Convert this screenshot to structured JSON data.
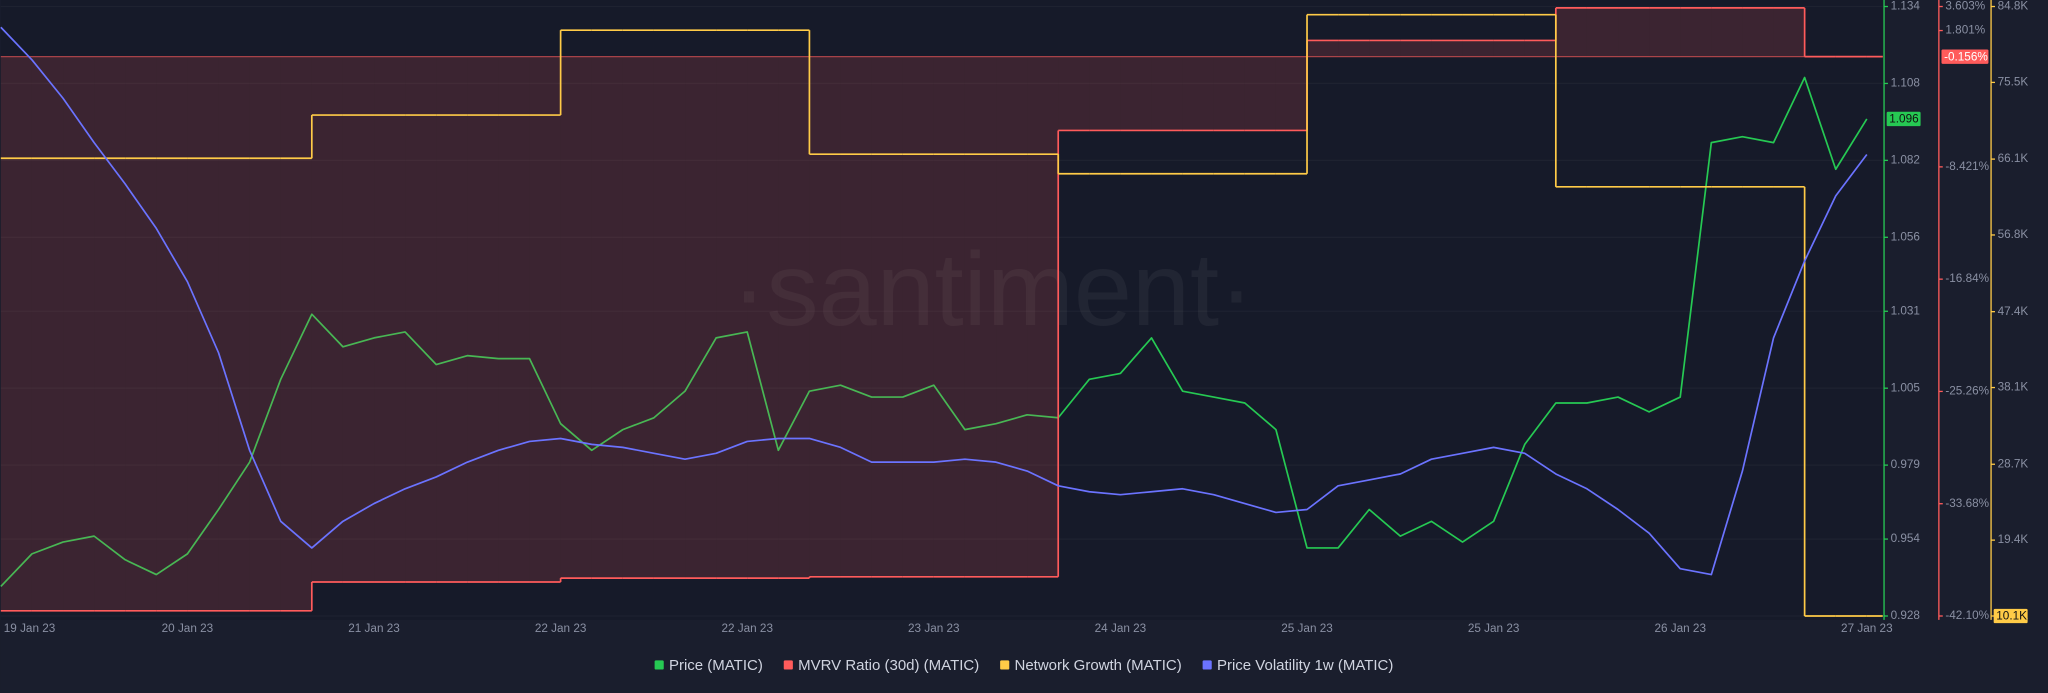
{
  "chart_data": {
    "type": "line",
    "watermark": "·santiment·",
    "categories": [
      "19 Jan 23",
      null,
      null,
      null,
      null,
      null,
      "20 Jan 23",
      null,
      null,
      null,
      null,
      null,
      "21 Jan 23",
      null,
      null,
      null,
      null,
      null,
      "22 Jan 23",
      null,
      null,
      null,
      null,
      null,
      "22 Jan 23",
      null,
      null,
      null,
      null,
      null,
      "23 Jan 23",
      null,
      null,
      null,
      null,
      null,
      "24 Jan 23",
      null,
      null,
      null,
      null,
      null,
      "25 Jan 23",
      null,
      null,
      null,
      null,
      null,
      "25 Jan 23",
      null,
      null,
      null,
      null,
      null,
      "26 Jan 23",
      null,
      null,
      null,
      null,
      null,
      "27 Jan 23"
    ],
    "ylim": [
      0.928,
      1.134
    ],
    "yticks": [
      0.928,
      0.954,
      0.979,
      1.005,
      1.031,
      1.056,
      1.082,
      1.108,
      1.134
    ],
    "y2lim": [
      -42.1,
      3.603
    ],
    "y2ticks": [
      {
        "value": -42.1,
        "label": "-42.10%"
      },
      {
        "value": -33.68,
        "label": "-33.68%"
      },
      {
        "value": -25.26,
        "label": "-25.26%"
      },
      {
        "value": -16.84,
        "label": "-16.84%"
      },
      {
        "value": -8.421,
        "label": "-8.421%"
      },
      {
        "value": 1.801,
        "label": "1.801%"
      },
      {
        "value": 3.603,
        "label": "3.603%"
      }
    ],
    "y3lim": [
      10100,
      84800
    ],
    "y3ticks": [
      {
        "value": 10100,
        "label": "10.1K"
      },
      {
        "value": 19400,
        "label": "19.4K"
      },
      {
        "value": 28700,
        "label": "28.7K"
      },
      {
        "value": 38100,
        "label": "38.1K"
      },
      {
        "value": 47400,
        "label": "47.4K"
      },
      {
        "value": 56800,
        "label": "56.8K"
      },
      {
        "value": 66100,
        "label": "66.1K"
      },
      {
        "value": 75500,
        "label": "75.5K"
      },
      {
        "value": 84800,
        "label": "84.8K"
      }
    ],
    "grid": true,
    "legend": "bottom",
    "series": [
      {
        "name": "Price (MATIC)",
        "color": "#26c953",
        "axis": "y",
        "values": [
          0.938,
          0.949,
          0.953,
          0.955,
          0.947,
          0.942,
          0.949,
          0.964,
          0.98,
          1.008,
          1.03,
          1.019,
          1.022,
          1.024,
          1.013,
          1.016,
          1.015,
          1.015,
          0.993,
          0.984,
          0.991,
          0.995,
          1.004,
          1.022,
          1.024,
          0.984,
          1.004,
          1.006,
          1.002,
          1.002,
          1.006,
          0.991,
          0.993,
          0.996,
          0.995,
          1.008,
          1.01,
          1.022,
          1.004,
          1.002,
          1.0,
          0.991,
          0.951,
          0.951,
          0.964,
          0.955,
          0.96,
          0.953,
          0.96,
          0.986,
          1.0,
          1.0,
          1.002,
          0.997,
          1.002,
          1.088,
          1.09,
          1.088,
          1.11,
          1.079,
          1.096
        ],
        "value_labels": [
          null,
          null,
          null,
          null,
          null,
          null,
          null,
          null,
          null,
          null,
          null,
          null,
          null,
          null,
          null,
          null,
          null,
          null,
          null,
          null,
          null,
          null,
          null,
          null,
          null,
          null,
          null,
          null,
          null,
          null,
          null,
          null,
          null,
          null,
          null,
          null,
          null,
          null,
          null,
          null,
          null,
          null,
          null,
          null,
          null,
          null,
          null,
          null,
          null,
          null,
          null,
          null,
          null,
          null,
          null,
          null,
          null,
          null,
          null,
          null,
          "1.096"
        ]
      },
      {
        "name": "MVRV Ratio (30d) (MATIC)",
        "color": "#ff5b5b",
        "axis": "y2",
        "step": true,
        "fill": true,
        "values": [
          -41.71,
          -41.71,
          -41.71,
          -41.71,
          -41.71,
          -41.71,
          -41.71,
          -41.71,
          -41.71,
          -41.71,
          -39.55,
          -39.55,
          -39.55,
          -39.55,
          -39.55,
          -39.55,
          -39.55,
          -39.55,
          -39.26,
          -39.26,
          -39.26,
          -39.26,
          -39.26,
          -39.26,
          -39.26,
          -39.26,
          -39.16,
          -39.16,
          -39.16,
          -39.16,
          -39.16,
          -39.16,
          -39.16,
          -39.16,
          -5.69,
          -5.69,
          -5.69,
          -5.69,
          -5.69,
          -5.69,
          -5.69,
          -5.69,
          1.06,
          1.06,
          1.06,
          1.06,
          1.06,
          1.06,
          1.06,
          1.06,
          3.5,
          3.5,
          3.5,
          3.5,
          3.5,
          3.5,
          3.5,
          3.5,
          -0.156,
          -0.156,
          -0.156
        ],
        "value_labels": [
          null,
          null,
          null,
          null,
          null,
          null,
          null,
          null,
          null,
          null,
          null,
          null,
          null,
          null,
          null,
          null,
          null,
          null,
          null,
          null,
          null,
          null,
          null,
          null,
          null,
          null,
          null,
          null,
          null,
          null,
          null,
          null,
          null,
          null,
          null,
          null,
          null,
          null,
          null,
          null,
          null,
          null,
          null,
          null,
          null,
          null,
          null,
          null,
          null,
          null,
          null,
          null,
          null,
          null,
          null,
          null,
          null,
          null,
          null,
          null,
          "-0.156%"
        ]
      },
      {
        "name": "Network Growth (MATIC)",
        "color": "#ffcb47",
        "axis": "y3",
        "step": true,
        "values": [
          66200,
          66200,
          66200,
          66200,
          66200,
          66200,
          66200,
          66200,
          66200,
          66200,
          71500,
          71500,
          71500,
          71500,
          71500,
          71500,
          71500,
          71500,
          81900,
          81900,
          81900,
          81900,
          81900,
          81900,
          81900,
          81900,
          66700,
          66700,
          66700,
          66700,
          66700,
          66700,
          66700,
          66700,
          64300,
          64300,
          64300,
          64300,
          64300,
          64300,
          64300,
          64300,
          83800,
          83800,
          83800,
          83800,
          83800,
          83800,
          83800,
          83800,
          62700,
          62700,
          62700,
          62700,
          62700,
          62700,
          62700,
          62700,
          10100,
          10100,
          10100
        ],
        "value_labels": [
          null,
          null,
          null,
          null,
          null,
          null,
          null,
          null,
          null,
          null,
          null,
          null,
          null,
          null,
          null,
          null,
          null,
          null,
          null,
          null,
          null,
          null,
          null,
          null,
          null,
          null,
          null,
          null,
          null,
          null,
          null,
          null,
          null,
          null,
          null,
          null,
          null,
          null,
          null,
          null,
          null,
          null,
          null,
          null,
          null,
          null,
          null,
          null,
          null,
          null,
          null,
          null,
          null,
          null,
          null,
          null,
          null,
          null,
          null,
          null,
          "10.1K"
        ]
      },
      {
        "name": "Price Volatility 1w (MATIC)",
        "color": "#6b73ff",
        "axis": "y",
        "values": [
          1.127,
          1.116,
          1.103,
          1.088,
          1.074,
          1.059,
          1.041,
          1.017,
          0.984,
          0.96,
          0.951,
          0.96,
          0.966,
          0.971,
          0.975,
          0.98,
          0.984,
          0.987,
          0.988,
          0.986,
          0.985,
          0.983,
          0.981,
          0.983,
          0.987,
          0.988,
          0.988,
          0.985,
          0.98,
          0.98,
          0.98,
          0.981,
          0.98,
          0.977,
          0.972,
          0.97,
          0.969,
          0.97,
          0.971,
          0.969,
          0.966,
          0.963,
          0.964,
          0.972,
          0.974,
          0.976,
          0.981,
          0.983,
          0.985,
          0.983,
          0.976,
          0.971,
          0.964,
          0.956,
          0.944,
          0.942,
          0.977,
          1.022,
          1.048,
          1.07,
          1.084
        ]
      }
    ]
  }
}
